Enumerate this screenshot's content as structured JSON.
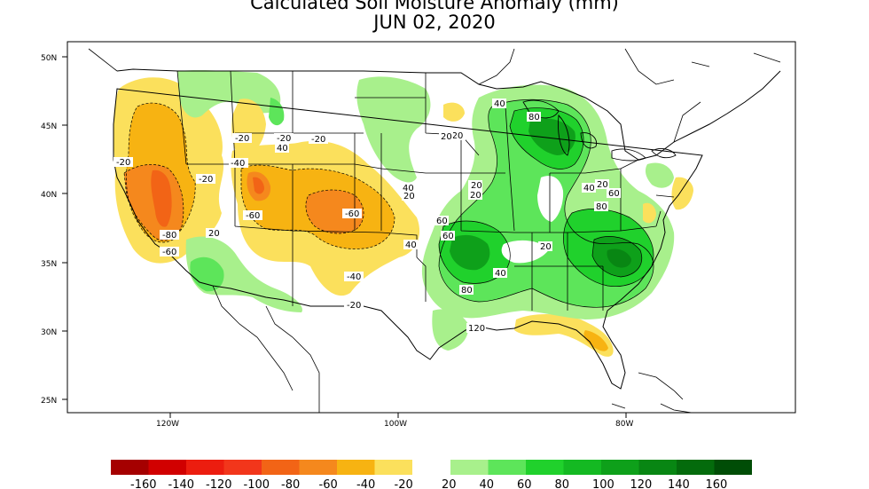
{
  "title": {
    "line1": "Calculated Soil Moisture Anomaly (mm)",
    "line2": "JUN 02, 2020"
  },
  "axes": {
    "lat_labels": [
      "50N",
      "45N",
      "40N",
      "35N",
      "30N",
      "25N"
    ],
    "lon_labels": [
      "120W",
      "100W",
      "80W"
    ]
  },
  "contour_labels": [
    "-20",
    "-40",
    "-20",
    "-20",
    "-20",
    "-60",
    "-60",
    "-80",
    "-60",
    "-40",
    "-20",
    "20",
    "40",
    "-20",
    "40",
    "20",
    "20",
    "40",
    "60",
    "80",
    "20",
    "60",
    "80",
    "120",
    "40",
    "20",
    "40",
    "20",
    "60",
    "80",
    "20",
    "40",
    "-20"
  ],
  "legend": {
    "negative": [
      {
        "label": "-160",
        "color": "#a50000"
      },
      {
        "label": "-140",
        "color": "#d10000"
      },
      {
        "label": "-120",
        "color": "#ec1d0f"
      },
      {
        "label": "-100",
        "color": "#f2361b"
      },
      {
        "label": "-80",
        "color": "#f26416"
      },
      {
        "label": "-60",
        "color": "#f5881d"
      },
      {
        "label": "-40",
        "color": "#f7b312"
      },
      {
        "label": "-20",
        "color": "#fbe05c"
      }
    ],
    "positive": [
      {
        "label": "20",
        "color": "#a8f08c"
      },
      {
        "label": "40",
        "color": "#5de55a"
      },
      {
        "label": "60",
        "color": "#20d12c"
      },
      {
        "label": "80",
        "color": "#14b922"
      },
      {
        "label": "100",
        "color": "#0ea01a"
      },
      {
        "label": "120",
        "color": "#088613"
      },
      {
        "label": "140",
        "color": "#046b0c"
      },
      {
        "label": "160",
        "color": "#004d06"
      }
    ]
  },
  "colors": {
    "dry_light": "#fbe05c",
    "dry_mid": "#f7b312",
    "dry_strong": "#f5881d",
    "dry_severe": "#f26416",
    "wet_light": "#a8f08c",
    "wet_mid": "#5de55a",
    "wet_strong": "#20d12c",
    "wet_deep": "#0ea01a",
    "wet_severe": "#088613"
  }
}
